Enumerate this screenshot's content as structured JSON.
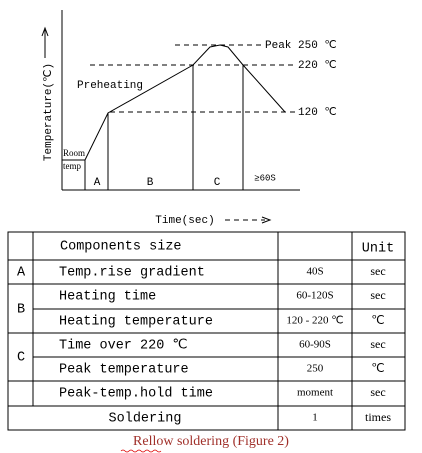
{
  "diagram": {
    "y_axis_label": "Temperature(℃)",
    "room_label": [
      "Room",
      "temp"
    ],
    "phase_label": "Preheating",
    "peak_label": "Peak 250 ℃",
    "level_220": "220 ℃",
    "level_120": "120 ℃",
    "zones": [
      "A",
      "B",
      "C",
      "≥60S"
    ],
    "x_axis_label": "Time(sec)"
  },
  "table": {
    "header": [
      "Components size",
      "Unit"
    ],
    "groups": [
      "A",
      "B",
      "C"
    ],
    "rows": [
      [
        "Temp.rise gradient",
        "40S",
        "sec"
      ],
      [
        "Heating time",
        "60-120S",
        "sec"
      ],
      [
        "Heating temperature",
        "120 - 220 ℃",
        "℃"
      ],
      [
        "Time over 220 ℃",
        "60-90S",
        "sec"
      ],
      [
        "Peak temperature",
        "250",
        "℃"
      ],
      [
        "Peak-temp.hold time",
        "moment",
        "sec"
      ],
      [
        "Soldering",
        "1",
        "times"
      ]
    ]
  },
  "caption": "Rellow soldering (Figure 2)"
}
